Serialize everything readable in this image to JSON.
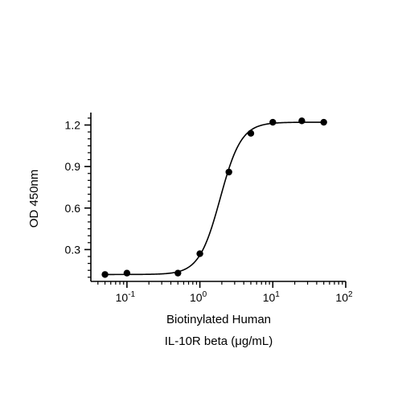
{
  "chart_data": {
    "type": "scatter",
    "xlabel_lines": [
      "Biotinylated Human",
      "IL-10R beta (μg/mL)"
    ],
    "ylabel": "OD 450nm",
    "x_scale": "log",
    "xlim": [
      0.032,
      100
    ],
    "ylim": [
      0.07,
      1.29
    ],
    "x_ticks": [
      {
        "value": 0.1,
        "base": "10",
        "exp": "-1"
      },
      {
        "value": 1,
        "base": "10",
        "exp": "0"
      },
      {
        "value": 10,
        "base": "10",
        "exp": "1"
      },
      {
        "value": 100,
        "base": "10",
        "exp": "2"
      }
    ],
    "y_ticks": [
      {
        "value": 0.3,
        "label": "0.3"
      },
      {
        "value": 0.6,
        "label": "0.6"
      },
      {
        "value": 0.9,
        "label": "0.9"
      },
      {
        "value": 1.2,
        "label": "1.2"
      }
    ],
    "series": [
      {
        "points": [
          {
            "x": 0.05,
            "y": 0.12
          },
          {
            "x": 0.1,
            "y": 0.13
          },
          {
            "x": 0.5,
            "y": 0.13
          },
          {
            "x": 1,
            "y": 0.27
          },
          {
            "x": 2.5,
            "y": 0.86
          },
          {
            "x": 5,
            "y": 1.14
          },
          {
            "x": 10,
            "y": 1.22
          },
          {
            "x": 25,
            "y": 1.23
          },
          {
            "x": 50,
            "y": 1.22
          }
        ],
        "fit": {
          "model": "4PL",
          "bottom": 0.12,
          "top": 1.22,
          "ec50": 1.9,
          "hill": 3.0
        }
      }
    ],
    "grid": false,
    "legend": "none",
    "colors": {
      "marker": "#000000",
      "line": "#000000",
      "axis": "#000000"
    }
  }
}
